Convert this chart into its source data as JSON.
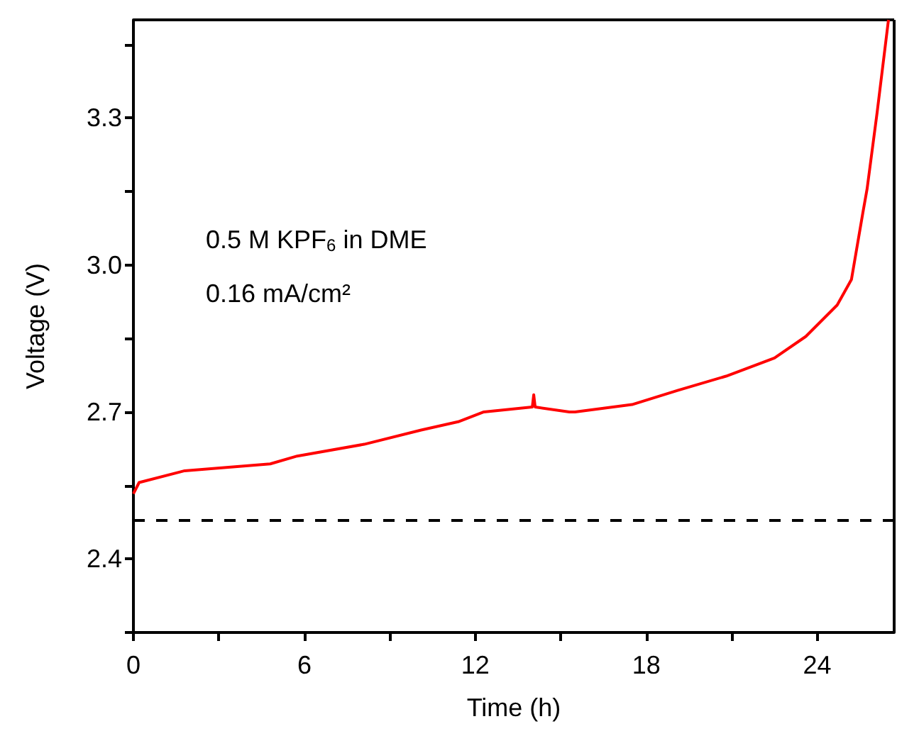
{
  "chart_data": {
    "type": "line",
    "xlabel": "Time (h)",
    "ylabel": "Voltage (V)",
    "annotations": [
      "0.5 M KPF$_{6}$ in DME",
      "0.16 mA/cm²"
    ],
    "xlim": [
      0,
      26.7
    ],
    "xticks": [
      0,
      6,
      12,
      18,
      24
    ],
    "ylim": [
      2.25,
      3.5
    ],
    "yticks": [
      {
        "value": 2.4,
        "label": "2.4"
      },
      {
        "value": 2.7,
        "label": "2.7"
      },
      {
        "value": 3,
        "label": "3.0"
      },
      {
        "value": 3.3,
        "label": "3.3"
      }
    ],
    "grid": false,
    "marker": "none",
    "line_style": "solid",
    "ref_lines": [
      {
        "axis": "y",
        "value": 2.48,
        "color": "#000000",
        "line_style": "dashed"
      }
    ],
    "series": [
      {
        "color": "#ff0000",
        "x": [
          0,
          0.2,
          1.8,
          4.8,
          5.75,
          8.1,
          10.1,
          11.4,
          12.3,
          14.0,
          14.05,
          14.1,
          15.3,
          15.5,
          17.5,
          19.1,
          20.8,
          22.5,
          23.6,
          24.7,
          25.2,
          25.6,
          25.75,
          26.1,
          26.5
        ],
        "values": [
          2.533,
          2.556,
          2.58,
          2.594,
          2.61,
          2.634,
          2.663,
          2.68,
          2.7,
          2.71,
          2.735,
          2.71,
          2.7,
          2.7,
          2.715,
          2.744,
          2.773,
          2.81,
          2.854,
          2.918,
          2.97,
          3.106,
          3.155,
          3.31,
          3.5
        ]
      }
    ]
  }
}
